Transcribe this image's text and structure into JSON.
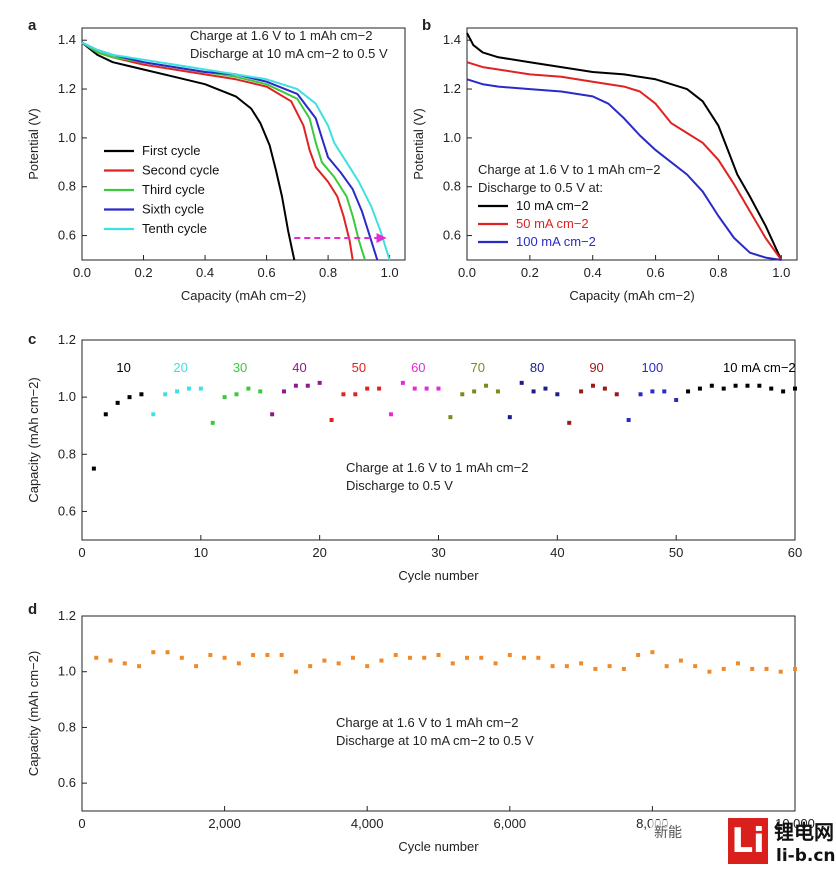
{
  "chart_data": [
    {
      "panel": "a",
      "type": "line",
      "xlabel": "Capacity (mAh cm−2)",
      "ylabel": "Potential (V)",
      "xlim": [
        0,
        1.05
      ],
      "ylim": [
        0.5,
        1.45
      ],
      "xticks": [
        "0.0",
        "0.2",
        "0.4",
        "0.6",
        "0.8",
        "1.0"
      ],
      "yticks": [
        "0.6",
        "0.8",
        "1.0",
        "1.2",
        "1.4"
      ],
      "annotation": [
        "Charge at 1.6 V to 1 mAh cm−2",
        "Discharge at 10 mA cm−2 to 0.5 V"
      ],
      "legend_position": "lower-left",
      "arrow": {
        "from": [
          0.69,
          0.59
        ],
        "to": [
          0.99,
          0.59
        ],
        "color": "#e62bd6"
      },
      "series": [
        {
          "name": "First cycle",
          "color": "#000000",
          "x": [
            0,
            0.05,
            0.1,
            0.2,
            0.3,
            0.4,
            0.5,
            0.55,
            0.58,
            0.61,
            0.63,
            0.65,
            0.67,
            0.69
          ],
          "y": [
            1.39,
            1.34,
            1.31,
            1.28,
            1.25,
            1.22,
            1.17,
            1.12,
            1.06,
            0.97,
            0.87,
            0.76,
            0.62,
            0.5
          ]
        },
        {
          "name": "Second cycle",
          "color": "#e02222",
          "x": [
            0,
            0.05,
            0.1,
            0.2,
            0.3,
            0.4,
            0.5,
            0.6,
            0.68,
            0.72,
            0.74,
            0.76,
            0.8,
            0.83,
            0.85,
            0.87,
            0.88
          ],
          "y": [
            1.39,
            1.35,
            1.33,
            1.3,
            1.28,
            1.26,
            1.24,
            1.21,
            1.15,
            1.05,
            0.95,
            0.88,
            0.82,
            0.76,
            0.68,
            0.58,
            0.5
          ]
        },
        {
          "name": "Third cycle",
          "color": "#3ec83e",
          "x": [
            0,
            0.05,
            0.1,
            0.2,
            0.3,
            0.4,
            0.5,
            0.6,
            0.7,
            0.74,
            0.76,
            0.78,
            0.82,
            0.86,
            0.88,
            0.9,
            0.92
          ],
          "y": [
            1.39,
            1.35,
            1.33,
            1.31,
            1.29,
            1.27,
            1.25,
            1.22,
            1.16,
            1.08,
            0.98,
            0.9,
            0.84,
            0.76,
            0.68,
            0.58,
            0.5
          ]
        },
        {
          "name": "Sixth cycle",
          "color": "#2a2ac8",
          "x": [
            0,
            0.05,
            0.1,
            0.2,
            0.3,
            0.4,
            0.5,
            0.6,
            0.7,
            0.76,
            0.78,
            0.8,
            0.84,
            0.88,
            0.91,
            0.93,
            0.96
          ],
          "y": [
            1.39,
            1.36,
            1.34,
            1.31,
            1.29,
            1.27,
            1.26,
            1.23,
            1.18,
            1.08,
            1.0,
            0.92,
            0.86,
            0.79,
            0.7,
            0.62,
            0.5
          ]
        },
        {
          "name": "Tenth cycle",
          "color": "#3fe0e0",
          "x": [
            0,
            0.05,
            0.1,
            0.2,
            0.3,
            0.4,
            0.5,
            0.6,
            0.7,
            0.76,
            0.8,
            0.82,
            0.86,
            0.9,
            0.94,
            0.97,
            1.0
          ],
          "y": [
            1.39,
            1.36,
            1.34,
            1.32,
            1.3,
            1.28,
            1.26,
            1.24,
            1.2,
            1.14,
            1.05,
            0.98,
            0.9,
            0.82,
            0.72,
            0.62,
            0.5
          ]
        }
      ]
    },
    {
      "panel": "b",
      "type": "line",
      "xlabel": "Capacity (mAh cm−2)",
      "ylabel": "Potential (V)",
      "xlim": [
        0,
        1.05
      ],
      "ylim": [
        0.5,
        1.45
      ],
      "xticks": [
        "0.0",
        "0.2",
        "0.4",
        "0.6",
        "0.8",
        "1.0"
      ],
      "yticks": [
        "0.6",
        "0.8",
        "1.0",
        "1.2",
        "1.4"
      ],
      "annotation": [
        "Charge at 1.6 V to 1 mAh cm−2",
        "Discharge to 0.5 V at:"
      ],
      "legend_position": "lower-left",
      "series": [
        {
          "name": "10 mA cm−2",
          "color": "#000000",
          "x": [
            0,
            0.02,
            0.05,
            0.1,
            0.2,
            0.3,
            0.4,
            0.5,
            0.6,
            0.7,
            0.75,
            0.8,
            0.83,
            0.86,
            0.9,
            0.95,
            1.0
          ],
          "y": [
            1.43,
            1.38,
            1.35,
            1.33,
            1.31,
            1.29,
            1.27,
            1.26,
            1.24,
            1.2,
            1.15,
            1.05,
            0.95,
            0.85,
            0.76,
            0.64,
            0.5
          ]
        },
        {
          "name": "50 mA cm−2",
          "color": "#e02222",
          "x": [
            0,
            0.05,
            0.1,
            0.2,
            0.3,
            0.4,
            0.5,
            0.55,
            0.6,
            0.65,
            0.7,
            0.75,
            0.8,
            0.85,
            0.9,
            0.95,
            1.0
          ],
          "y": [
            1.31,
            1.29,
            1.28,
            1.26,
            1.25,
            1.23,
            1.21,
            1.19,
            1.14,
            1.06,
            1.02,
            0.98,
            0.91,
            0.81,
            0.7,
            0.59,
            0.5
          ]
        },
        {
          "name": "100 mA cm−2",
          "color": "#2a2ac8",
          "x": [
            0,
            0.05,
            0.1,
            0.2,
            0.3,
            0.4,
            0.45,
            0.5,
            0.55,
            0.6,
            0.65,
            0.7,
            0.75,
            0.8,
            0.85,
            0.9,
            0.95,
            1.0
          ],
          "y": [
            1.24,
            1.22,
            1.21,
            1.2,
            1.19,
            1.17,
            1.14,
            1.08,
            1.01,
            0.95,
            0.9,
            0.85,
            0.78,
            0.68,
            0.59,
            0.53,
            0.51,
            0.5
          ]
        }
      ]
    },
    {
      "panel": "c",
      "type": "scatter",
      "xlabel": "Cycle number",
      "ylabel": "Capacity (mAh cm−2)",
      "xlim": [
        0,
        60
      ],
      "ylim": [
        0.5,
        1.2
      ],
      "xticks": [
        "0",
        "10",
        "20",
        "30",
        "40",
        "50",
        "60"
      ],
      "yticks": [
        "0.6",
        "0.8",
        "1.0",
        "1.2"
      ],
      "annotation": [
        "Charge at 1.6 V to 1 mAh cm−2",
        "Discharge to 0.5 V"
      ],
      "rate_labels": [
        {
          "text": "10",
          "color": "#000000",
          "at_cycle": 3.5
        },
        {
          "text": "20",
          "color": "#3fe0e0",
          "at_cycle": 8.3
        },
        {
          "text": "30",
          "color": "#3ec83e",
          "at_cycle": 13.3
        },
        {
          "text": "40",
          "color": "#8e1a8e",
          "at_cycle": 18.3
        },
        {
          "text": "50",
          "color": "#e02222",
          "at_cycle": 23.3
        },
        {
          "text": "60",
          "color": "#e62bd6",
          "at_cycle": 28.3
        },
        {
          "text": "70",
          "color": "#7a8a1e",
          "at_cycle": 33.3
        },
        {
          "text": "80",
          "color": "#1c1c8a",
          "at_cycle": 38.3
        },
        {
          "text": "90",
          "color": "#9a1a1a",
          "at_cycle": 43.3
        },
        {
          "text": "100",
          "color": "#2a2ac8",
          "at_cycle": 48.0
        },
        {
          "text": "10 mA cm−2",
          "color": "#000000",
          "at_cycle": 57.0
        }
      ],
      "series": [
        {
          "name": "10",
          "color": "#000000",
          "x": [
            1,
            2,
            3,
            4,
            5
          ],
          "y": [
            0.75,
            0.94,
            0.98,
            1.0,
            1.01
          ]
        },
        {
          "name": "20",
          "color": "#3fe0e0",
          "x": [
            6,
            7,
            8,
            9,
            10
          ],
          "y": [
            0.94,
            1.01,
            1.02,
            1.03,
            1.03
          ]
        },
        {
          "name": "30",
          "color": "#3ec83e",
          "x": [
            11,
            12,
            13,
            14,
            15
          ],
          "y": [
            0.91,
            1.0,
            1.01,
            1.03,
            1.02
          ]
        },
        {
          "name": "40",
          "color": "#8e1a8e",
          "x": [
            16,
            17,
            18,
            19,
            20
          ],
          "y": [
            0.94,
            1.02,
            1.04,
            1.04,
            1.05
          ]
        },
        {
          "name": "50",
          "color": "#e02222",
          "x": [
            21,
            22,
            23,
            24,
            25
          ],
          "y": [
            0.92,
            1.01,
            1.01,
            1.03,
            1.03
          ]
        },
        {
          "name": "60",
          "color": "#e62bd6",
          "x": [
            26,
            27,
            28,
            29,
            30
          ],
          "y": [
            0.94,
            1.05,
            1.03,
            1.03,
            1.03
          ]
        },
        {
          "name": "70",
          "color": "#7a8a1e",
          "x": [
            31,
            32,
            33,
            34,
            35
          ],
          "y": [
            0.93,
            1.01,
            1.02,
            1.04,
            1.02
          ]
        },
        {
          "name": "80",
          "color": "#1c1c8a",
          "x": [
            36,
            37,
            38,
            39,
            40
          ],
          "y": [
            0.93,
            1.05,
            1.02,
            1.03,
            1.01
          ]
        },
        {
          "name": "90",
          "color": "#9a1a1a",
          "x": [
            41,
            42,
            43,
            44,
            45
          ],
          "y": [
            0.91,
            1.02,
            1.04,
            1.03,
            1.01
          ]
        },
        {
          "name": "100",
          "color": "#2a2ac8",
          "x": [
            46,
            47,
            48,
            49,
            50
          ],
          "y": [
            0.92,
            1.01,
            1.02,
            1.02,
            0.99
          ]
        },
        {
          "name": "10 mA cm−2",
          "color": "#000000",
          "x": [
            51,
            52,
            53,
            54,
            55,
            56,
            57,
            58,
            59,
            60
          ],
          "y": [
            1.02,
            1.03,
            1.04,
            1.03,
            1.04,
            1.04,
            1.04,
            1.03,
            1.02,
            1.03
          ]
        }
      ]
    },
    {
      "panel": "d",
      "type": "scatter",
      "xlabel": "Cycle number",
      "ylabel": "Capacity (mAh cm−2)",
      "xlim": [
        0,
        10000
      ],
      "ylim": [
        0.5,
        1.2
      ],
      "xticks": [
        "0",
        "2,000",
        "4,000",
        "6,000",
        "8,000",
        "10,000"
      ],
      "yticks": [
        "0.6",
        "0.8",
        "1.0",
        "1.2"
      ],
      "annotation": [
        "Charge at 1.6 V to 1 mAh cm−2",
        "Discharge at 10 mA cm−2 to 0.5 V"
      ],
      "series": [
        {
          "name": "",
          "color": "#f08a28",
          "x": [
            200,
            400,
            600,
            800,
            1000,
            1200,
            1400,
            1600,
            1800,
            2000,
            2200,
            2400,
            2600,
            2800,
            3000,
            3200,
            3400,
            3600,
            3800,
            4000,
            4200,
            4400,
            4600,
            4800,
            5000,
            5200,
            5400,
            5600,
            5800,
            6000,
            6200,
            6400,
            6600,
            6800,
            7000,
            7200,
            7400,
            7600,
            7800,
            8000,
            8200,
            8400,
            8600,
            8800,
            9000,
            9200,
            9400,
            9600,
            9800,
            10000
          ],
          "y": [
            1.05,
            1.04,
            1.03,
            1.02,
            1.07,
            1.07,
            1.05,
            1.02,
            1.06,
            1.05,
            1.03,
            1.06,
            1.06,
            1.06,
            1.0,
            1.02,
            1.04,
            1.03,
            1.05,
            1.02,
            1.04,
            1.06,
            1.05,
            1.05,
            1.06,
            1.03,
            1.05,
            1.05,
            1.03,
            1.06,
            1.05,
            1.05,
            1.02,
            1.02,
            1.03,
            1.01,
            1.02,
            1.01,
            1.06,
            1.07,
            1.02,
            1.04,
            1.02,
            1.0,
            1.01,
            1.03,
            1.01,
            1.01,
            1.0,
            1.01
          ]
        }
      ]
    }
  ],
  "panel_labels": [
    "a",
    "b",
    "c",
    "d"
  ],
  "watermark": {
    "badge": "Li",
    "site_name": "锂电网",
    "domain": "li-b.cn",
    "left_text": "新能"
  }
}
